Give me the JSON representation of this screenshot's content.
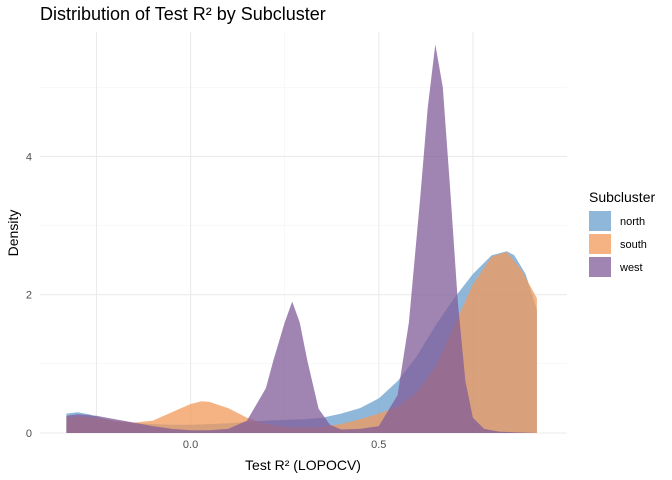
{
  "chart_data": {
    "type": "area",
    "subtype": "density",
    "title": "Distribution of Test R² by Subcluster",
    "xlabel": "Test R² (LOPOCV)",
    "ylabel": "Density",
    "xlim": [
      -0.4,
      1.0
    ],
    "ylim": [
      0,
      5.8
    ],
    "x_ticks": [
      0.0,
      0.5
    ],
    "x_tick_labels": [
      "0.0",
      "0.5"
    ],
    "y_ticks": [
      0,
      2,
      4
    ],
    "y_tick_labels": [
      "0",
      "2",
      "4"
    ],
    "grid": true,
    "legend": {
      "title": "Subcluster",
      "position": "right"
    },
    "series": [
      {
        "name": "north",
        "color": "#6a9fcd",
        "x": [
          -0.33,
          -0.3,
          -0.27,
          -0.24,
          -0.2,
          -0.15,
          -0.1,
          -0.05,
          0.0,
          0.05,
          0.1,
          0.15,
          0.2,
          0.25,
          0.3,
          0.35,
          0.4,
          0.45,
          0.5,
          0.55,
          0.6,
          0.65,
          0.7,
          0.75,
          0.8,
          0.84,
          0.86,
          0.89,
          0.92
        ],
        "values": [
          0.28,
          0.3,
          0.27,
          0.22,
          0.17,
          0.14,
          0.13,
          0.12,
          0.12,
          0.13,
          0.14,
          0.16,
          0.18,
          0.19,
          0.2,
          0.22,
          0.28,
          0.36,
          0.5,
          0.75,
          1.1,
          1.55,
          1.95,
          2.3,
          2.57,
          2.63,
          2.57,
          2.3,
          1.78
        ]
      },
      {
        "name": "south",
        "color": "#f19a5b",
        "x": [
          -0.33,
          -0.3,
          -0.25,
          -0.2,
          -0.15,
          -0.1,
          -0.05,
          0.0,
          0.03,
          0.05,
          0.1,
          0.15,
          0.2,
          0.25,
          0.3,
          0.35,
          0.4,
          0.45,
          0.5,
          0.55,
          0.6,
          0.65,
          0.7,
          0.75,
          0.8,
          0.84,
          0.88,
          0.92
        ],
        "values": [
          0.22,
          0.24,
          0.22,
          0.18,
          0.15,
          0.18,
          0.3,
          0.42,
          0.46,
          0.45,
          0.36,
          0.22,
          0.13,
          0.09,
          0.08,
          0.09,
          0.13,
          0.2,
          0.28,
          0.38,
          0.58,
          0.95,
          1.55,
          2.15,
          2.55,
          2.62,
          2.35,
          1.95
        ]
      },
      {
        "name": "west",
        "color": "#805c99",
        "x": [
          -0.33,
          -0.3,
          -0.25,
          -0.2,
          -0.15,
          -0.1,
          -0.05,
          0.0,
          0.05,
          0.1,
          0.15,
          0.2,
          0.22,
          0.25,
          0.27,
          0.29,
          0.31,
          0.34,
          0.37,
          0.4,
          0.45,
          0.5,
          0.55,
          0.58,
          0.61,
          0.63,
          0.65,
          0.67,
          0.69,
          0.71,
          0.73,
          0.75,
          0.78,
          0.82,
          0.86,
          0.92
        ],
        "values": [
          0.25,
          0.27,
          0.25,
          0.2,
          0.15,
          0.1,
          0.06,
          0.04,
          0.04,
          0.06,
          0.18,
          0.65,
          1.05,
          1.6,
          1.9,
          1.6,
          1.05,
          0.35,
          0.12,
          0.05,
          0.06,
          0.1,
          0.55,
          1.6,
          3.4,
          4.7,
          5.62,
          5.0,
          3.5,
          1.9,
          0.75,
          0.22,
          0.06,
          0.02,
          0.01,
          0.0
        ]
      }
    ]
  }
}
